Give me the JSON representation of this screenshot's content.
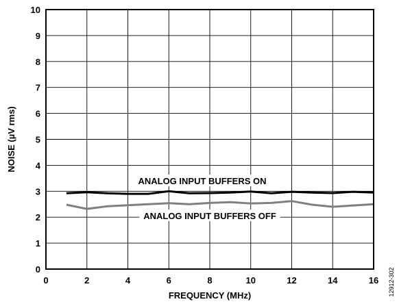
{
  "chart_data": {
    "type": "line",
    "xlabel": "FREQUENCY (MHz)",
    "ylabel": "NOISE (µV rms)",
    "xlim": [
      0,
      16
    ],
    "ylim": [
      0,
      10
    ],
    "xticks": [
      0,
      2,
      4,
      6,
      8,
      10,
      12,
      14,
      16
    ],
    "yticks": [
      0,
      1,
      2,
      3,
      4,
      5,
      6,
      7,
      8,
      9,
      10
    ],
    "grid": true,
    "figure_id": "12912-302",
    "series": [
      {
        "name": "ANALOG INPUT BUFFERS ON",
        "color": "#000000",
        "x": [
          1,
          2,
          3,
          4,
          5,
          6,
          7,
          8,
          9,
          10,
          11,
          12,
          13,
          14,
          15,
          16
        ],
        "values": [
          2.92,
          2.96,
          2.92,
          2.9,
          2.9,
          3.0,
          2.92,
          2.93,
          2.95,
          2.99,
          2.92,
          2.98,
          2.95,
          2.93,
          2.98,
          2.95
        ]
      },
      {
        "name": "ANALOG INPUT BUFFERS OFF",
        "color": "#808080",
        "x": [
          1,
          2,
          3,
          4,
          5,
          6,
          7,
          8,
          9,
          10,
          11,
          12,
          13,
          14,
          15,
          16
        ],
        "values": [
          2.48,
          2.32,
          2.42,
          2.46,
          2.5,
          2.54,
          2.5,
          2.55,
          2.58,
          2.53,
          2.55,
          2.62,
          2.48,
          2.4,
          2.45,
          2.5
        ]
      }
    ]
  }
}
